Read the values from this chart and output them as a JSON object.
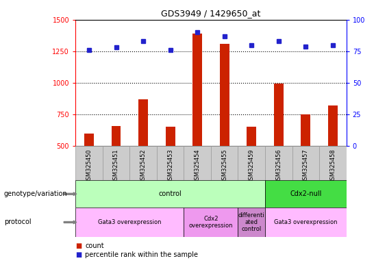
{
  "title": "GDS3949 / 1429650_at",
  "samples": [
    "GSM325450",
    "GSM325451",
    "GSM325452",
    "GSM325453",
    "GSM325454",
    "GSM325455",
    "GSM325459",
    "GSM325456",
    "GSM325457",
    "GSM325458"
  ],
  "counts": [
    600,
    660,
    870,
    655,
    1390,
    1310,
    655,
    995,
    750,
    820
  ],
  "percentiles": [
    76,
    78,
    83,
    76,
    90,
    87,
    80,
    83,
    79,
    80
  ],
  "ylim_left": [
    500,
    1500
  ],
  "ylim_right": [
    0,
    100
  ],
  "yticks_left": [
    500,
    750,
    1000,
    1250,
    1500
  ],
  "yticks_right": [
    0,
    25,
    50,
    75,
    100
  ],
  "bar_color": "#cc2200",
  "dot_color": "#2222cc",
  "genotype_groups": [
    {
      "label": "control",
      "start": 0,
      "end": 7,
      "color": "#bbffbb"
    },
    {
      "label": "Cdx2-null",
      "start": 7,
      "end": 10,
      "color": "#44dd44"
    }
  ],
  "protocol_groups": [
    {
      "label": "Gata3 overexpression",
      "start": 0,
      "end": 4,
      "color": "#ffbbff"
    },
    {
      "label": "Cdx2\noverexpression",
      "start": 4,
      "end": 6,
      "color": "#ee99ee"
    },
    {
      "label": "differenti\nated\ncontrol",
      "start": 6,
      "end": 7,
      "color": "#cc88cc"
    },
    {
      "label": "Gata3 overexpression",
      "start": 7,
      "end": 10,
      "color": "#ffbbff"
    }
  ],
  "legend_count_color": "#cc2200",
  "legend_dot_color": "#2222cc",
  "background_color": "#ffffff",
  "dotted_line_y": [
    750,
    1000,
    1250
  ],
  "row_label_genotype": "genotype/variation",
  "row_label_protocol": "protocol",
  "bar_width": 0.35,
  "xtick_bg_color": "#cccccc",
  "xtick_border_color": "#999999"
}
